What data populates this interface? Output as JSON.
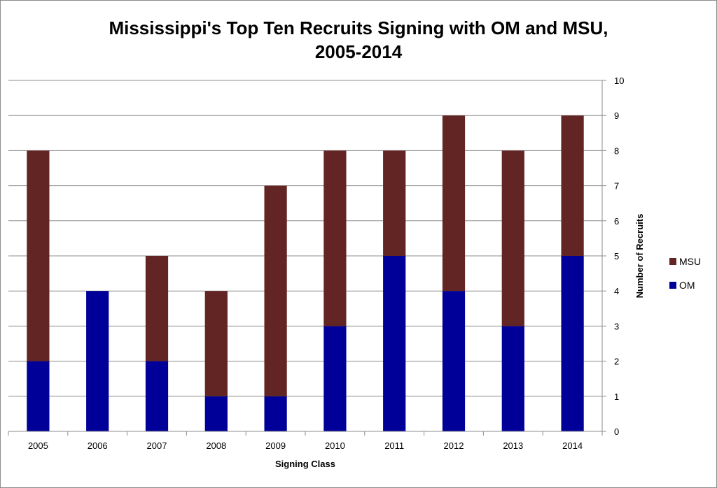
{
  "chart_data": {
    "type": "bar",
    "stacked": true,
    "title_line1": "Mississippi's Top Ten Recruits Signing with OM and MSU,",
    "title_line2": "2005-2014",
    "xlabel": "Signing Class",
    "ylabel": "Number of Recruits",
    "y_axis_side": "right",
    "ylim": [
      0,
      10
    ],
    "yticks": [
      0,
      1,
      2,
      3,
      4,
      5,
      6,
      7,
      8,
      9,
      10
    ],
    "grid": true,
    "legend_position": "right",
    "categories": [
      "2005",
      "2006",
      "2007",
      "2008",
      "2009",
      "2010",
      "2011",
      "2012",
      "2013",
      "2014"
    ],
    "series": [
      {
        "name": "OM",
        "color": "#000099",
        "values": [
          2,
          4,
          2,
          1,
          1,
          3,
          5,
          4,
          3,
          5
        ]
      },
      {
        "name": "MSU",
        "color": "#632523",
        "values": [
          6,
          0,
          3,
          3,
          6,
          5,
          3,
          5,
          5,
          4
        ]
      }
    ],
    "legend_order": [
      "MSU",
      "OM"
    ]
  }
}
